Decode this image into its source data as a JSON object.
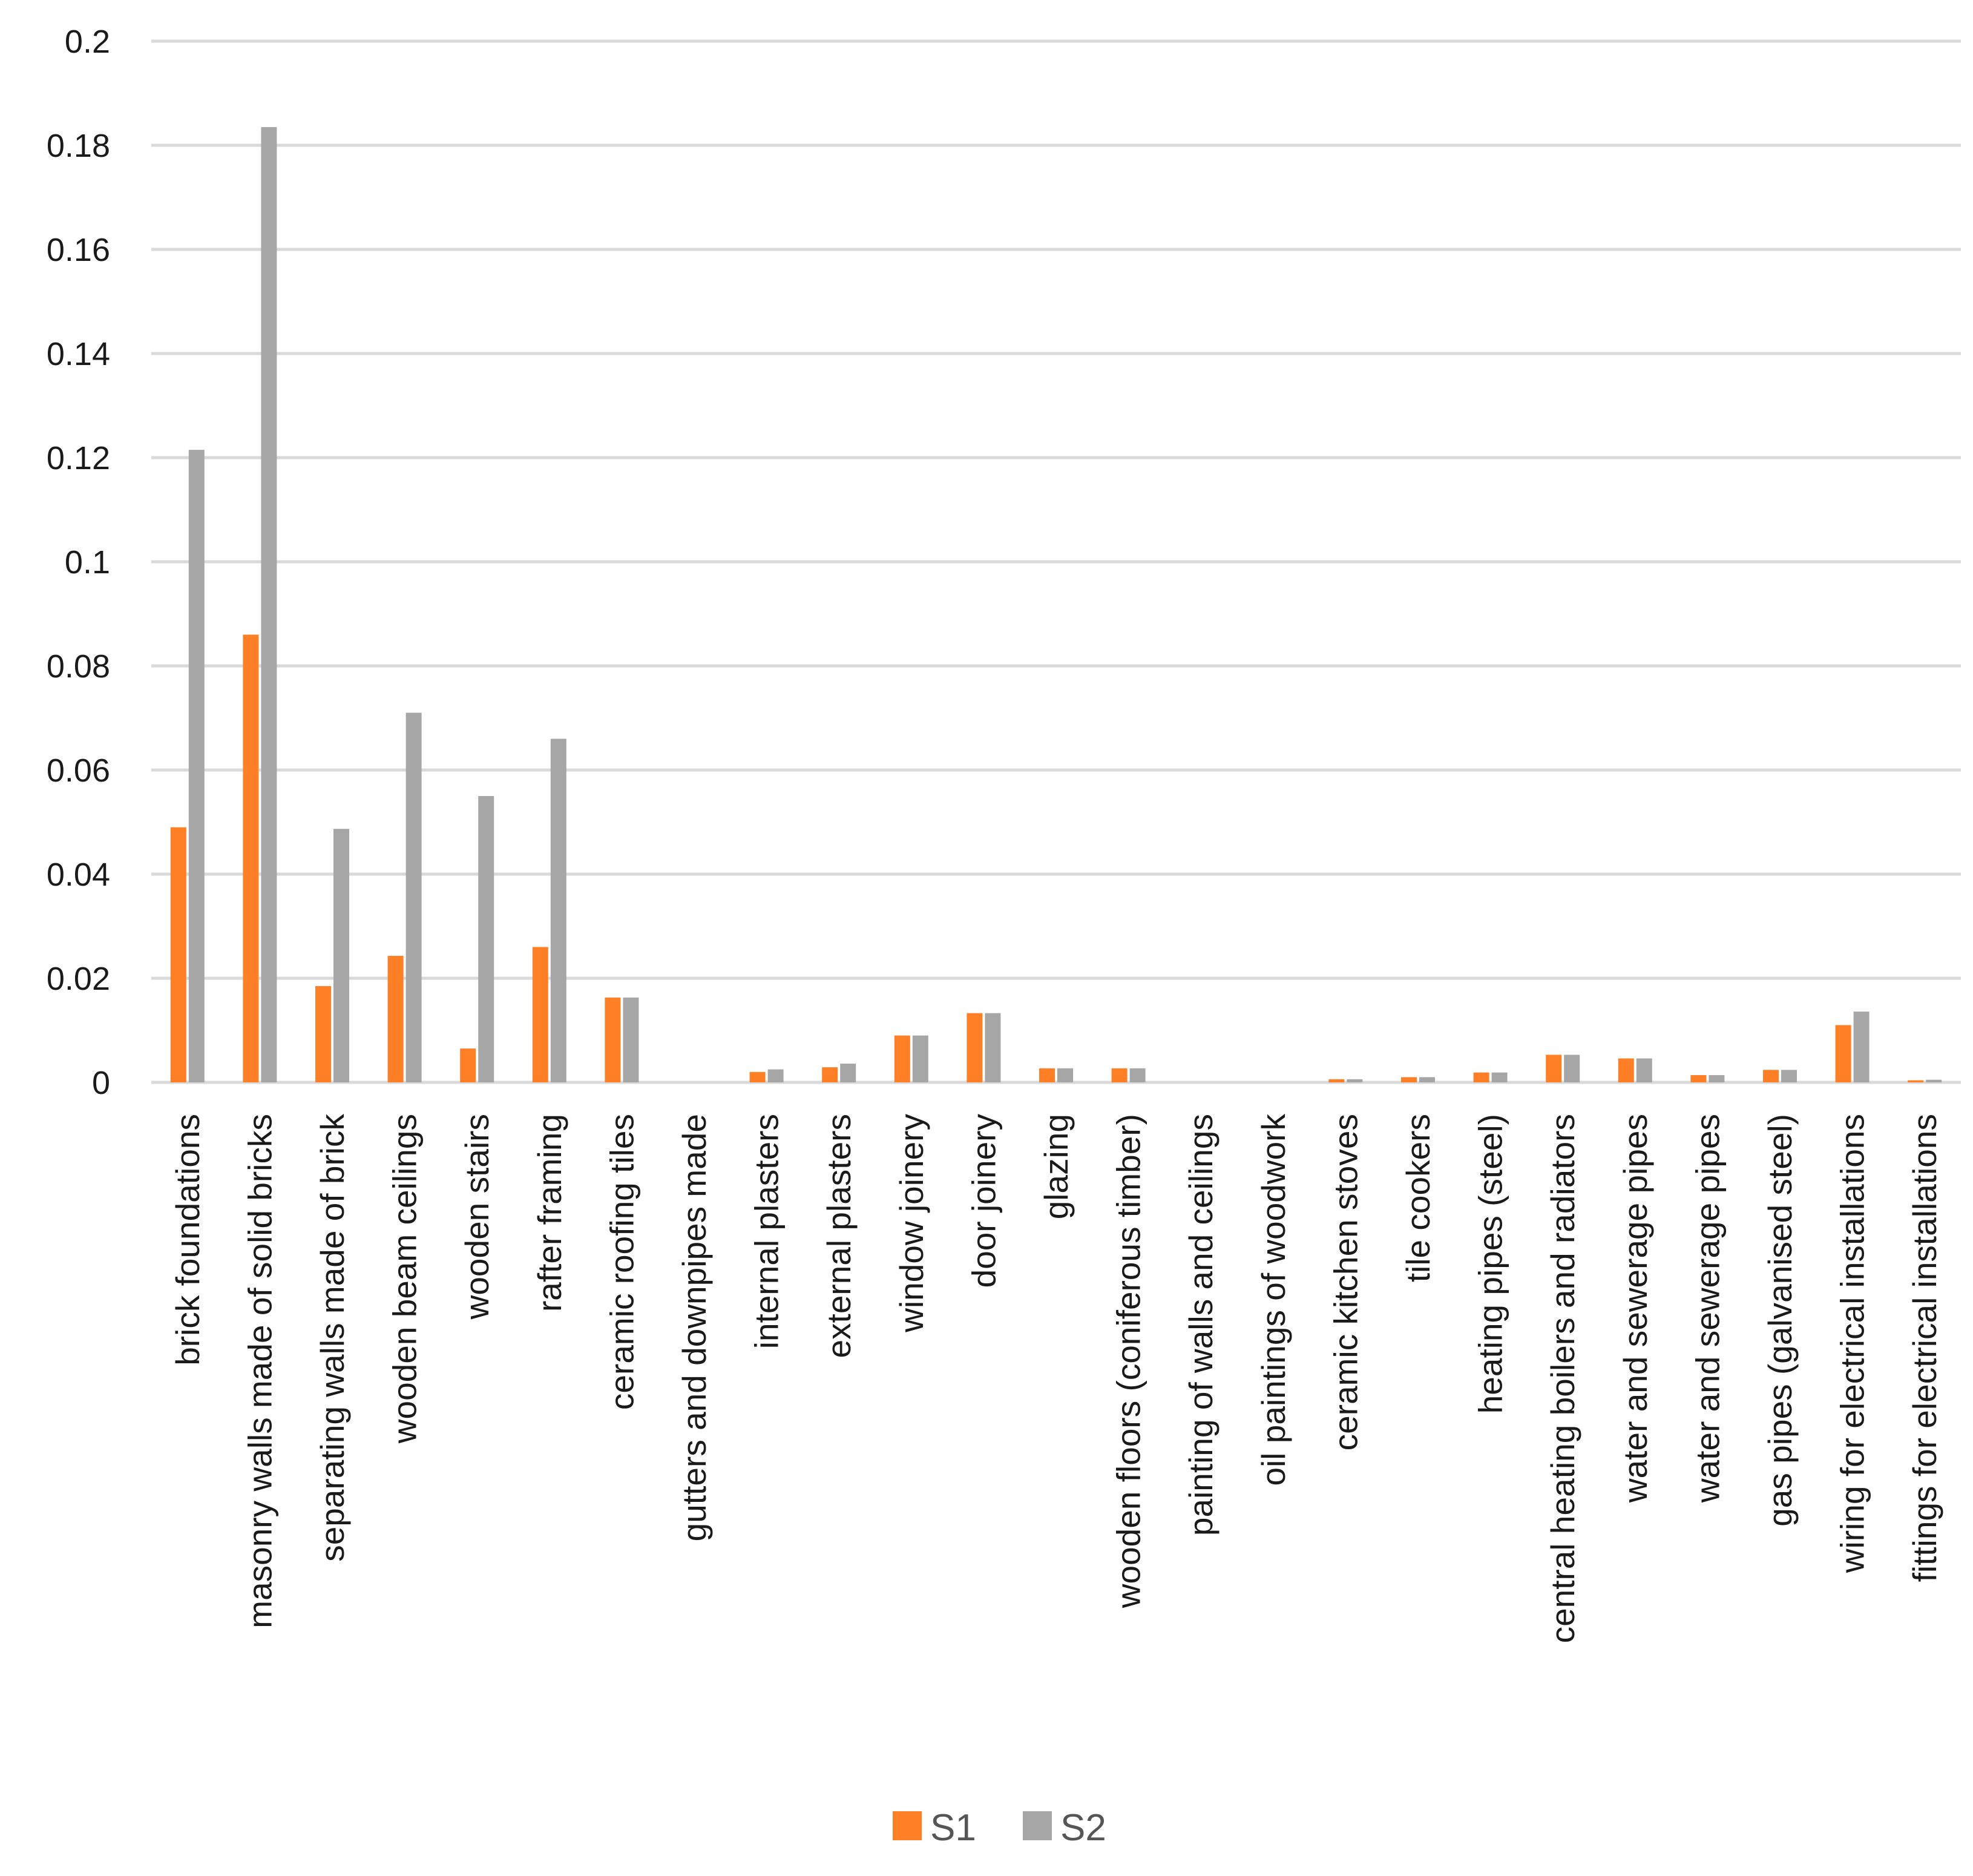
{
  "chart_data": {
    "type": "bar",
    "title": "",
    "xlabel": "",
    "ylabel": "",
    "ylim": [
      0,
      0.2
    ],
    "grid": true,
    "legend_position": "bottom",
    "y_ticks": [
      "0",
      "0.02",
      "0.04",
      "0.06",
      "0.08",
      "0.1",
      "0.12",
      "0.14",
      "0.16",
      "0.18",
      "0.2"
    ],
    "categories": [
      "brick foundations",
      "masonry walls made of solid bricks",
      "separating walls made of brick",
      "wooden beam ceilings",
      "wooden stairs",
      "rafter framing",
      "ceramic roofing tiles",
      "gutters and downpipes made",
      "internal plasters",
      "external plasters",
      "window joinery",
      "door joinery",
      "glazing",
      "wooden floors (coniferous timber)",
      "painting of walls and ceilings",
      "oil paintings of woodwork",
      "ceramic kitchen stoves",
      "tile cookers",
      "heating pipes (steel)",
      "central heating boilers and radiators",
      "water and sewerage pipes",
      "water and sewerage pipes",
      "gas pipes (galvanised steel)",
      "wiring for electrical installations",
      "fittings for electrical installations"
    ],
    "series": [
      {
        "name": "S1",
        "color": "#FF7F27",
        "values": [
          0.049,
          0.086,
          0.0185,
          0.0243,
          0.0065,
          0.026,
          0.0163,
          0.0,
          0.002,
          0.0029,
          0.009,
          0.0133,
          0.0027,
          0.0027,
          0.0,
          0.0,
          0.0006,
          0.001,
          0.0019,
          0.0053,
          0.0046,
          0.0014,
          0.0024,
          0.011,
          0.0004
        ]
      },
      {
        "name": "S2",
        "color": "#A6A6A6",
        "values": [
          0.1215,
          0.1835,
          0.0487,
          0.071,
          0.055,
          0.066,
          0.0163,
          0.0,
          0.0025,
          0.0036,
          0.009,
          0.0133,
          0.0027,
          0.0027,
          0.0,
          0.0,
          0.0006,
          0.001,
          0.0019,
          0.0053,
          0.0046,
          0.0014,
          0.0024,
          0.0136,
          0.0005
        ]
      }
    ]
  }
}
